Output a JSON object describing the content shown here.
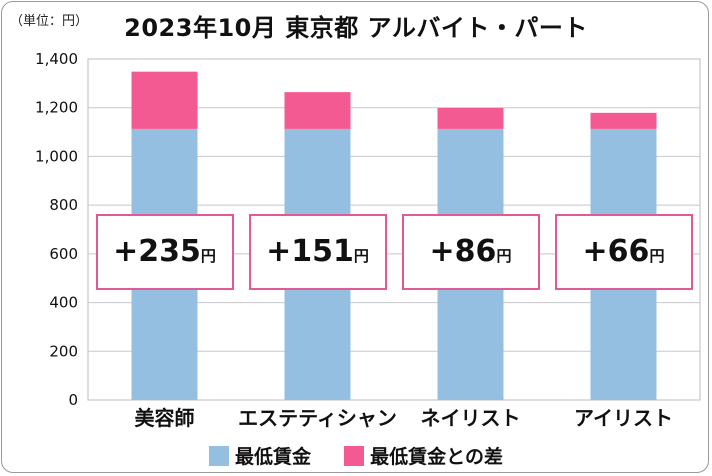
{
  "unit_label": "（単位：円）",
  "chart_data": {
    "type": "bar",
    "stacked": true,
    "title": "2023年10月 東京都 アルバイト・パート",
    "categories": [
      "美容師",
      "エステティシャン",
      "ネイリスト",
      "アイリスト"
    ],
    "series": [
      {
        "name": "最低賃金",
        "values": [
          1113,
          1113,
          1113,
          1113
        ],
        "color": "#94bfe0"
      },
      {
        "name": "最低賃金との差",
        "values": [
          235,
          151,
          86,
          66
        ],
        "color": "#f25a91"
      }
    ],
    "yticks": [
      "0",
      "200",
      "400",
      "600",
      "800",
      "1,000",
      "1,200",
      "1,400"
    ],
    "ylim": [
      0,
      1400
    ],
    "grid": true,
    "legend_position": "bottom"
  },
  "diff_labels": [
    {
      "value": "+235",
      "unit": "円"
    },
    {
      "value": "+151",
      "unit": "円"
    },
    {
      "value": "+86",
      "unit": "円"
    },
    {
      "value": "+66",
      "unit": "円"
    }
  ]
}
